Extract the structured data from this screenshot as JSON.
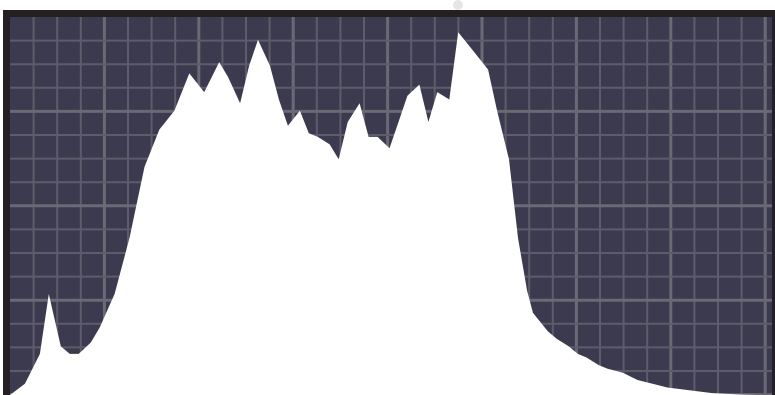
{
  "panel": {
    "name": "histogram",
    "colors": {
      "background": "#3c3a4e",
      "grid": "#5e5c6a",
      "grid_major": "#6b6975",
      "fill": "#ffffff",
      "border": "#231f22"
    }
  },
  "chart_data": {
    "type": "area",
    "title": "",
    "xlabel": "",
    "ylabel": "",
    "grid": true,
    "xlim": [
      0,
      255
    ],
    "ylim": [
      0,
      1
    ],
    "x": [
      0,
      5,
      10,
      13,
      17,
      20,
      23,
      27,
      30,
      35,
      40,
      45,
      50,
      55,
      60,
      65,
      70,
      73,
      77,
      80,
      83,
      87,
      90,
      93,
      97,
      100,
      103,
      107,
      110,
      113,
      117,
      120,
      123,
      127,
      130,
      133,
      137,
      140,
      143,
      147,
      150,
      153,
      157,
      160,
      163,
      167,
      170,
      173,
      175,
      177,
      180,
      183,
      187,
      190,
      193,
      197,
      200,
      205,
      210,
      215,
      220,
      225,
      230,
      235,
      240,
      245,
      250,
      255
    ],
    "values": [
      0.0,
      0.03,
      0.11,
      0.27,
      0.13,
      0.11,
      0.11,
      0.14,
      0.18,
      0.27,
      0.42,
      0.61,
      0.71,
      0.76,
      0.86,
      0.81,
      0.89,
      0.85,
      0.78,
      0.88,
      0.95,
      0.88,
      0.79,
      0.72,
      0.76,
      0.7,
      0.69,
      0.67,
      0.63,
      0.73,
      0.78,
      0.69,
      0.69,
      0.66,
      0.73,
      0.8,
      0.83,
      0.73,
      0.81,
      0.79,
      0.97,
      0.94,
      0.9,
      0.87,
      0.76,
      0.63,
      0.42,
      0.28,
      0.22,
      0.2,
      0.17,
      0.15,
      0.13,
      0.11,
      0.1,
      0.08,
      0.07,
      0.06,
      0.04,
      0.03,
      0.02,
      0.015,
      0.01,
      0.005,
      0.003,
      0.001,
      0.0,
      0.0
    ]
  }
}
